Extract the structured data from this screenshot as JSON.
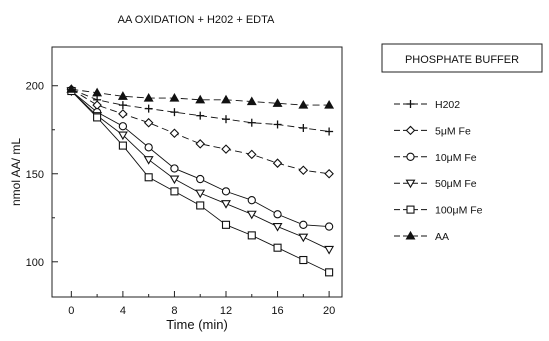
{
  "chart_data": {
    "type": "line",
    "title": "AA  OXIDATION  +  H202  +  EDTA",
    "xlabel": "Time (min)",
    "ylabel": "nmol AA/ mL",
    "xlim": [
      -1.5,
      21
    ],
    "ylim": [
      80,
      222
    ],
    "xticks": [
      0,
      4,
      8,
      12,
      16,
      20
    ],
    "yticks": [
      100,
      150,
      200
    ],
    "grid": false,
    "legend": {
      "title": "PHOSPHATE  BUFFER",
      "placement": "right"
    },
    "x": [
      0,
      2,
      4,
      6,
      8,
      10,
      12,
      14,
      16,
      18,
      20
    ],
    "series": [
      {
        "name": "H202",
        "marker": "plus",
        "values": [
          198,
          192,
          189,
          187,
          185,
          183,
          181,
          179,
          178,
          176,
          174
        ]
      },
      {
        "name": "5μM Fe",
        "marker": "diamond",
        "values": [
          198,
          189,
          184,
          179,
          173,
          167,
          164,
          161,
          156,
          152,
          150
        ]
      },
      {
        "name": "10μM Fe",
        "marker": "circle",
        "values": [
          197,
          185,
          177,
          165,
          153,
          147,
          140,
          135,
          127,
          121,
          120
        ]
      },
      {
        "name": "50μM Fe",
        "marker": "triangle-down",
        "values": [
          197,
          183,
          172,
          158,
          147,
          139,
          133,
          127,
          120,
          114,
          107
        ]
      },
      {
        "name": "100μM Fe",
        "marker": "square",
        "values": [
          197,
          182,
          166,
          148,
          140,
          132,
          121,
          115,
          108,
          101,
          94
        ]
      },
      {
        "name": "AA",
        "marker": "triangle-up",
        "values": [
          198,
          196,
          194,
          193,
          193,
          192,
          192,
          191,
          190,
          189,
          189
        ]
      }
    ]
  }
}
